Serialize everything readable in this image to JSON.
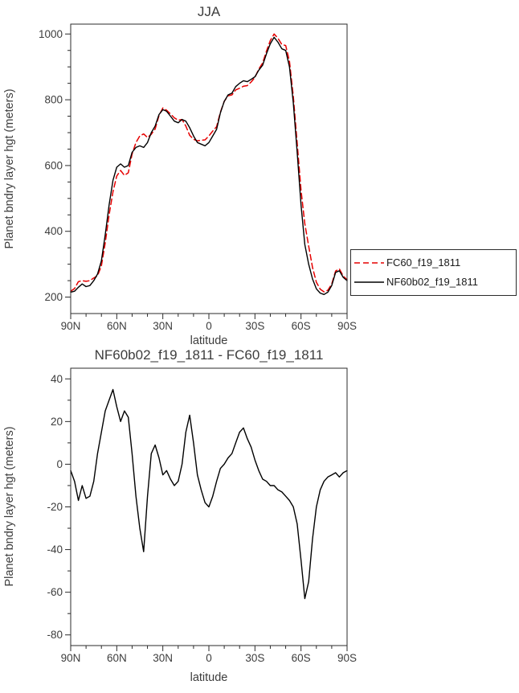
{
  "figure": {
    "background": "#ffffff",
    "text_color": "#3d3d3d",
    "axis_color": "#2b2b2b"
  },
  "chart_data": [
    {
      "id": "top-panel",
      "type": "line",
      "title": "JJA",
      "xlabel": "latitude",
      "ylabel": "Planet bndry layer hgt (meters)",
      "xlim": [
        90,
        -90
      ],
      "ylim": [
        150,
        1030
      ],
      "grid": false,
      "legend": {
        "position": "right-outside",
        "items": [
          "FC60_f19_1811",
          "NF60b02_f19_1811"
        ]
      },
      "xticks": {
        "values": [
          90,
          60,
          30,
          0,
          -30,
          -60,
          -90
        ],
        "labels": [
          "90N",
          "60N",
          "30N",
          "0",
          "30S",
          "60S",
          "90S"
        ],
        "minor_step": 10
      },
      "yticks": {
        "values": [
          200,
          400,
          600,
          800,
          1000
        ],
        "labels": [
          "200",
          "400",
          "600",
          "800",
          "1000"
        ],
        "minor_step": 50
      },
      "x": [
        90,
        87.5,
        85,
        82.5,
        80,
        77.5,
        75,
        72.5,
        70,
        67.5,
        65,
        62.5,
        60,
        57.5,
        55,
        52.5,
        50,
        47.5,
        45,
        42.5,
        40,
        37.5,
        35,
        32.5,
        30,
        27.5,
        25,
        22.5,
        20,
        17.5,
        15,
        12.5,
        10,
        7.5,
        5,
        2.5,
        0,
        -2.5,
        -5,
        -7.5,
        -10,
        -12.5,
        -15,
        -17.5,
        -20,
        -22.5,
        -25,
        -27.5,
        -30,
        -32.5,
        -35,
        -37.5,
        -40,
        -42.5,
        -45,
        -47.5,
        -50,
        -52.5,
        -55,
        -57.5,
        -60,
        -62.5,
        -65,
        -67.5,
        -70,
        -72.5,
        -75,
        -77.5,
        -80,
        -82.5,
        -85,
        -87.5,
        -90
      ],
      "series": [
        {
          "name": "FC60_f19_1811",
          "color": "#e60000",
          "style": "dashed",
          "values": [
            218,
            226,
            247,
            250,
            248,
            250,
            258,
            265,
            295,
            365,
            450,
            520,
            568,
            585,
            570,
            578,
            635,
            670,
            690,
            696,
            685,
            695,
            711,
            752,
            775,
            768,
            757,
            745,
            738,
            740,
            720,
            692,
            680,
            675,
            677,
            678,
            690,
            705,
            718,
            762,
            795,
            812,
            815,
            830,
            835,
            841,
            843,
            854,
            868,
            893,
            912,
            948,
            980,
            1000,
            987,
            968,
            965,
            917,
            810,
            668,
            525,
            423,
            355,
            290,
            245,
            224,
            216,
            221,
            240,
            279,
            286,
            264,
            253
          ]
        },
        {
          "name": "NF60b02_f19_1811",
          "color": "#000000",
          "style": "solid",
          "values": [
            215,
            218,
            230,
            240,
            232,
            235,
            250,
            270,
            310,
            390,
            480,
            555,
            595,
            605,
            595,
            600,
            640,
            655,
            660,
            655,
            670,
            700,
            720,
            755,
            770,
            765,
            750,
            735,
            730,
            740,
            735,
            715,
            690,
            670,
            665,
            660,
            670,
            690,
            710,
            760,
            795,
            815,
            820,
            840,
            850,
            858,
            855,
            862,
            870,
            890,
            905,
            940,
            970,
            990,
            975,
            955,
            950,
            900,
            790,
            640,
            480,
            360,
            300,
            255,
            225,
            212,
            208,
            215,
            235,
            275,
            280,
            260,
            250
          ]
        }
      ]
    },
    {
      "id": "bottom-panel",
      "type": "line",
      "title": "NF60b02_f19_1811 - FC60_f19_1811",
      "xlabel": "latitude",
      "ylabel": "Planet bndry layer hgt (meters)",
      "xlim": [
        90,
        -90
      ],
      "ylim": [
        -85,
        45
      ],
      "grid": false,
      "legend": null,
      "xticks": {
        "values": [
          90,
          60,
          30,
          0,
          -30,
          -60,
          -90
        ],
        "labels": [
          "90N",
          "60N",
          "30N",
          "0",
          "30S",
          "60S",
          "90S"
        ],
        "minor_step": 10
      },
      "yticks": {
        "values": [
          -80,
          -60,
          -40,
          -20,
          0,
          20,
          40
        ],
        "labels": [
          "-80",
          "-60",
          "-40",
          "-20",
          "0",
          "20",
          "40"
        ],
        "minor_step": 10
      },
      "x": [
        90,
        87.5,
        85,
        82.5,
        80,
        77.5,
        75,
        72.5,
        70,
        67.5,
        65,
        62.5,
        60,
        57.5,
        55,
        52.5,
        50,
        47.5,
        45,
        42.5,
        40,
        37.5,
        35,
        32.5,
        30,
        27.5,
        25,
        22.5,
        20,
        17.5,
        15,
        12.5,
        10,
        7.5,
        5,
        2.5,
        0,
        -2.5,
        -5,
        -7.5,
        -10,
        -12.5,
        -15,
        -17.5,
        -20,
        -22.5,
        -25,
        -27.5,
        -30,
        -32.5,
        -35,
        -37.5,
        -40,
        -42.5,
        -45,
        -47.5,
        -50,
        -52.5,
        -55,
        -57.5,
        -60,
        -62.5,
        -65,
        -67.5,
        -70,
        -72.5,
        -75,
        -77.5,
        -80,
        -82.5,
        -85,
        -87.5,
        -90
      ],
      "series": [
        {
          "name": "NF60b02_f19_1811 - FC60_f19_1811",
          "color": "#000000",
          "style": "solid",
          "values": [
            -3,
            -8,
            -17,
            -10,
            -16,
            -15,
            -8,
            5,
            15,
            25,
            30,
            35,
            27,
            20,
            25,
            22,
            5,
            -15,
            -30,
            -41,
            -15,
            5,
            9,
            3,
            -5,
            -3,
            -7,
            -10,
            -8,
            0,
            15,
            23,
            10,
            -5,
            -12,
            -18,
            -20,
            -15,
            -8,
            -2,
            0,
            3,
            5,
            10,
            15,
            17,
            12,
            8,
            2,
            -3,
            -7,
            -8,
            -10,
            -10,
            -12,
            -13,
            -15,
            -17,
            -20,
            -28,
            -45,
            -63,
            -55,
            -35,
            -20,
            -12,
            -8,
            -6,
            -5,
            -4,
            -6,
            -4,
            -3
          ]
        }
      ]
    }
  ]
}
